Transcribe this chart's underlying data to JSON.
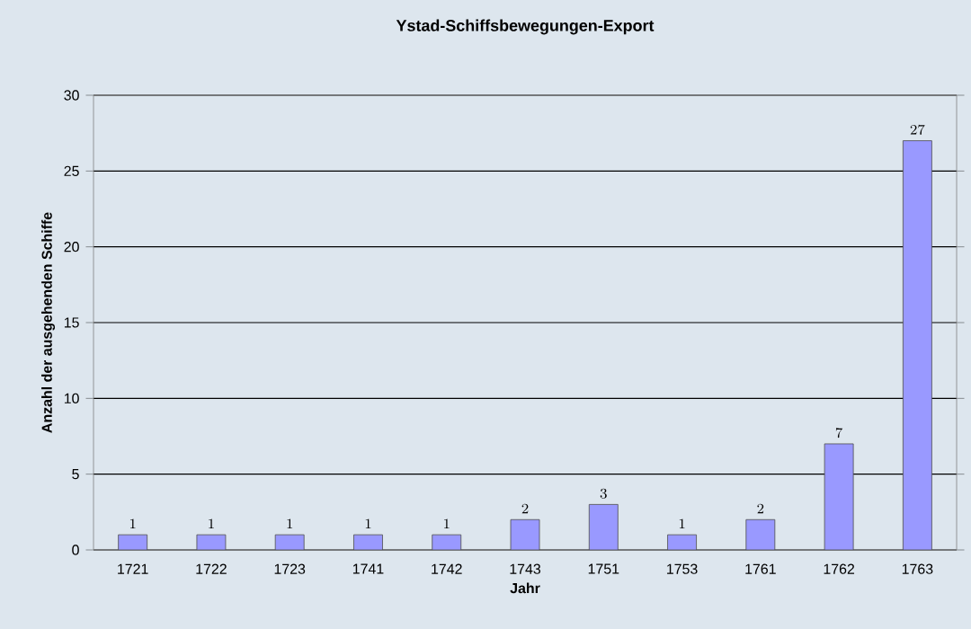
{
  "chart_data": {
    "type": "bar",
    "title": "Ystad-Schiffsbewegungen-Export",
    "xlabel": "Jahr",
    "ylabel": "Anzahl der ausgehenden Schiffe",
    "categories": [
      "1721",
      "1722",
      "1723",
      "1741",
      "1742",
      "1743",
      "1751",
      "1753",
      "1761",
      "1762",
      "1763"
    ],
    "values": [
      1,
      1,
      1,
      1,
      1,
      2,
      3,
      1,
      2,
      7,
      27
    ],
    "color": "#9999ff",
    "ylim": [
      0,
      30
    ],
    "yticks": [
      0,
      5,
      10,
      15,
      20,
      25,
      30
    ],
    "grid": "y",
    "data_labels": true
  }
}
